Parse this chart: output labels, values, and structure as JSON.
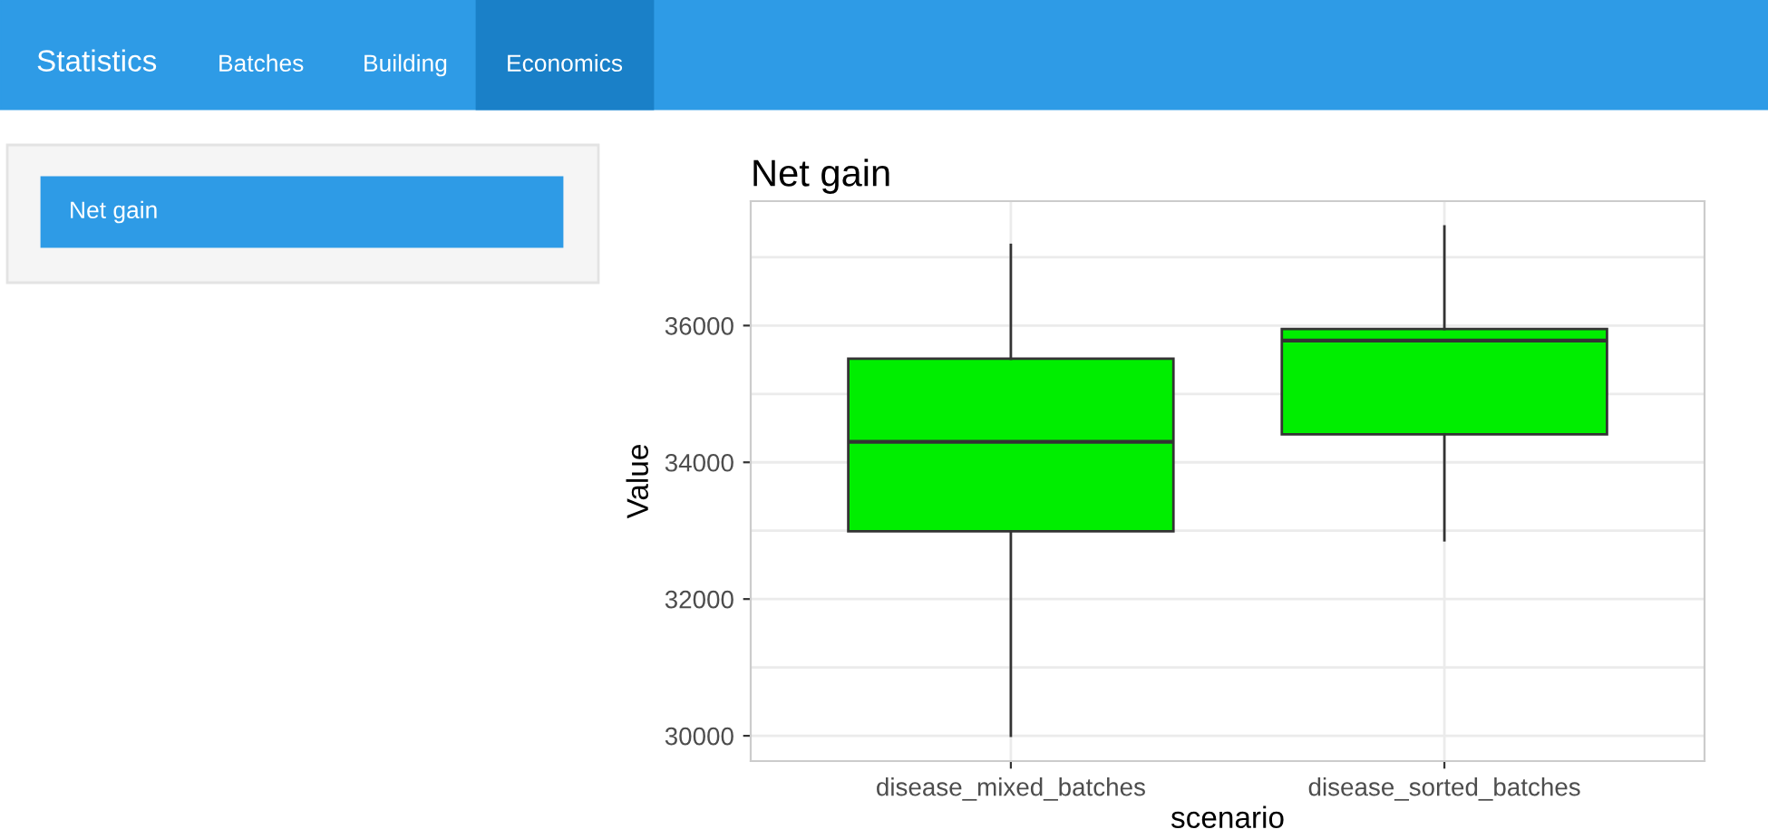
{
  "chart_data": {
    "type": "box",
    "title": "Net gain",
    "xlabel": "scenario",
    "ylabel": "Value",
    "categories": [
      "disease_mixed_batches",
      "disease_sorted_batches"
    ],
    "boxes": [
      {
        "low": 30000,
        "q1": 32990,
        "median": 34300,
        "q3": 35515,
        "high": 37180
      },
      {
        "low": 32860,
        "q1": 34410,
        "median": 35780,
        "q3": 35950,
        "high": 37450
      }
    ],
    "color": "#00ee00",
    "ylim": [
      29630,
      37820
    ],
    "yticks": [
      30000,
      {
        "value": 31000,
        "label": null
      },
      32000,
      {
        "value": 33000,
        "label": null
      },
      34000,
      {
        "value": 35000,
        "label": null
      },
      36000,
      {
        "value": 37000,
        "label": null
      }
    ],
    "grid": true,
    "annotations": [
      "Statistics",
      "Batches",
      "Building",
      "Economics",
      "Net gain"
    ]
  }
}
